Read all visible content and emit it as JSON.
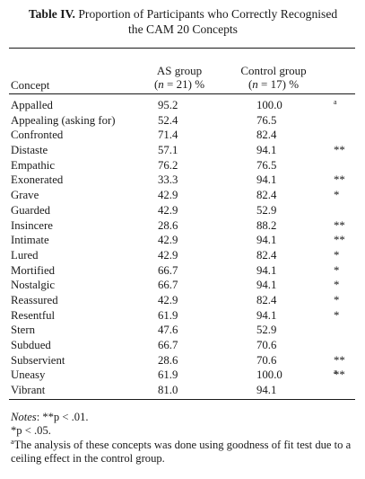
{
  "title": {
    "lead": "Table IV.",
    "text_line1": "Proportion of Participants who Correctly Recognised",
    "text_line2": "the CAM 20 Concepts"
  },
  "columns": {
    "concept": "Concept",
    "as_line1": "AS group",
    "as_n": "n",
    "as_rest": " = 21) %",
    "control_line1": "Control group",
    "control_n": "n",
    "control_rest": " = 17) %"
  },
  "rows": [
    {
      "concept": "Appalled",
      "as": "95.2",
      "control": "100.0",
      "sig": "",
      "sig_sup": "a"
    },
    {
      "concept": "Appealing (asking for)",
      "as": "52.4",
      "control": "76.5",
      "sig": "",
      "sig_sup": ""
    },
    {
      "concept": "Confronted",
      "as": "71.4",
      "control": "82.4",
      "sig": "",
      "sig_sup": ""
    },
    {
      "concept": "Distaste",
      "as": "57.1",
      "control": "94.1",
      "sig": "**",
      "sig_sup": ""
    },
    {
      "concept": "Empathic",
      "as": "76.2",
      "control": "76.5",
      "sig": "",
      "sig_sup": ""
    },
    {
      "concept": "Exonerated",
      "as": "33.3",
      "control": "94.1",
      "sig": "**",
      "sig_sup": ""
    },
    {
      "concept": "Grave",
      "as": "42.9",
      "control": "82.4",
      "sig": "*",
      "sig_sup": ""
    },
    {
      "concept": "Guarded",
      "as": "42.9",
      "control": "52.9",
      "sig": "",
      "sig_sup": ""
    },
    {
      "concept": "Insincere",
      "as": "28.6",
      "control": "88.2",
      "sig": "**",
      "sig_sup": ""
    },
    {
      "concept": "Intimate",
      "as": "42.9",
      "control": "94.1",
      "sig": "**",
      "sig_sup": ""
    },
    {
      "concept": "Lured",
      "as": "42.9",
      "control": "82.4",
      "sig": "*",
      "sig_sup": ""
    },
    {
      "concept": "Mortified",
      "as": "66.7",
      "control": "94.1",
      "sig": "*",
      "sig_sup": ""
    },
    {
      "concept": "Nostalgic",
      "as": "66.7",
      "control": "94.1",
      "sig": "*",
      "sig_sup": ""
    },
    {
      "concept": "Reassured",
      "as": "42.9",
      "control": "82.4",
      "sig": "*",
      "sig_sup": ""
    },
    {
      "concept": "Resentful",
      "as": "61.9",
      "control": "94.1",
      "sig": "*",
      "sig_sup": ""
    },
    {
      "concept": "Stern",
      "as": "47.6",
      "control": "52.9",
      "sig": "",
      "sig_sup": ""
    },
    {
      "concept": "Subdued",
      "as": "66.7",
      "control": "70.6",
      "sig": "",
      "sig_sup": ""
    },
    {
      "concept": "Subservient",
      "as": "28.6",
      "control": "70.6",
      "sig": "**",
      "sig_sup": ""
    },
    {
      "concept": "Uneasy",
      "as": "61.9",
      "control": "100.0",
      "sig": "**",
      "sig_sup": "a"
    },
    {
      "concept": "Vibrant",
      "as": "81.0",
      "control": "94.1",
      "sig": "",
      "sig_sup": ""
    }
  ],
  "notes": {
    "label": "Notes",
    "line1_rest": ": **p < .01.",
    "line2": "*p < .05.",
    "footnote_mark": "a",
    "footnote_text": "The analysis of these concepts was done using goodness of fit test due to a ceiling effect in the control group."
  }
}
